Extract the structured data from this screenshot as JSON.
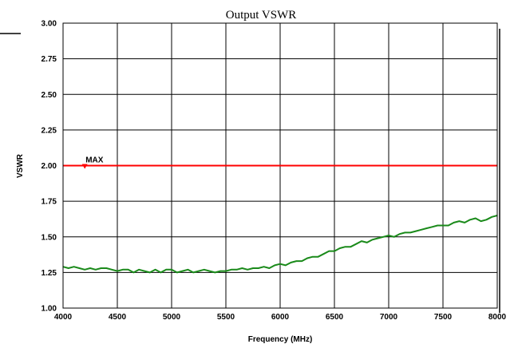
{
  "chart_data": {
    "type": "line",
    "title": "Output VSWR",
    "xlabel": "Frequency (MHz)",
    "ylabel": "VSWR",
    "xlim": [
      4000,
      8000
    ],
    "ylim": [
      1.0,
      3.0
    ],
    "x_ticks": [
      4000,
      4500,
      5000,
      5500,
      6000,
      6500,
      7000,
      7500,
      8000
    ],
    "y_ticks": [
      "1.00",
      "1.25",
      "1.50",
      "1.75",
      "2.00",
      "2.25",
      "2.50",
      "2.75",
      "3.00"
    ],
    "grid": true,
    "series": [
      {
        "color": "#1a8a1a",
        "x": [
          4000,
          4050,
          4100,
          4150,
          4200,
          4250,
          4300,
          4350,
          4400,
          4450,
          4500,
          4550,
          4600,
          4650,
          4700,
          4750,
          4800,
          4850,
          4900,
          4950,
          5000,
          5050,
          5100,
          5150,
          5200,
          5250,
          5300,
          5350,
          5400,
          5450,
          5500,
          5550,
          5600,
          5650,
          5700,
          5750,
          5800,
          5850,
          5900,
          5950,
          6000,
          6050,
          6100,
          6150,
          6200,
          6250,
          6300,
          6350,
          6400,
          6450,
          6500,
          6550,
          6600,
          6650,
          6700,
          6750,
          6800,
          6850,
          6900,
          6950,
          7000,
          7050,
          7100,
          7150,
          7200,
          7250,
          7300,
          7350,
          7400,
          7450,
          7500,
          7550,
          7600,
          7650,
          7700,
          7750,
          7800,
          7850,
          7900,
          7950,
          8000
        ],
        "values": [
          1.29,
          1.28,
          1.29,
          1.28,
          1.27,
          1.28,
          1.27,
          1.28,
          1.28,
          1.27,
          1.26,
          1.27,
          1.27,
          1.25,
          1.27,
          1.26,
          1.25,
          1.27,
          1.25,
          1.27,
          1.27,
          1.25,
          1.26,
          1.27,
          1.25,
          1.26,
          1.27,
          1.26,
          1.25,
          1.26,
          1.26,
          1.27,
          1.27,
          1.28,
          1.27,
          1.28,
          1.28,
          1.29,
          1.28,
          1.3,
          1.31,
          1.3,
          1.32,
          1.33,
          1.33,
          1.35,
          1.36,
          1.36,
          1.38,
          1.4,
          1.4,
          1.42,
          1.43,
          1.43,
          1.45,
          1.47,
          1.46,
          1.48,
          1.49,
          1.5,
          1.51,
          1.5,
          1.52,
          1.53,
          1.53,
          1.54,
          1.55,
          1.56,
          1.57,
          1.58,
          1.58,
          1.58,
          1.6,
          1.61,
          1.6,
          1.62,
          1.63,
          1.61,
          1.62,
          1.64,
          1.65
        ]
      }
    ],
    "limit_line": {
      "value": 2.0,
      "color": "#ff0000",
      "label": "MAX",
      "marker_x": 4200
    }
  }
}
